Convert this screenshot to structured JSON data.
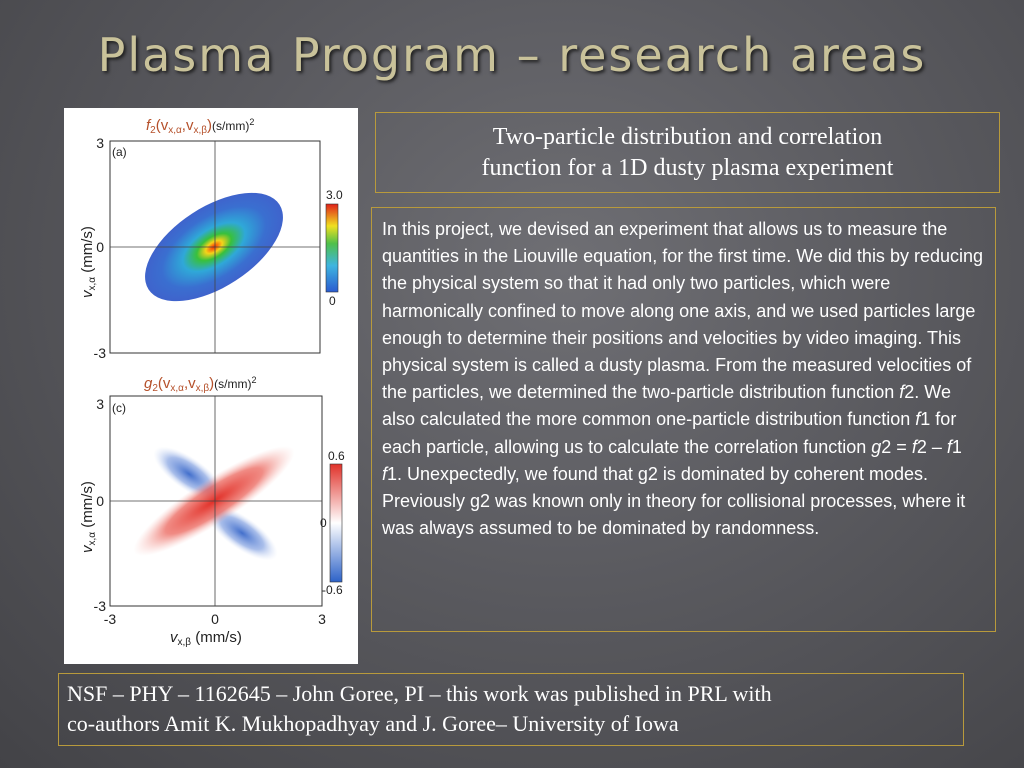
{
  "slide": {
    "title": "Plasma Program – research areas",
    "heading_line1": "Two-particle distribution and correlation",
    "heading_line2": "function for a 1D dusty plasma experiment",
    "body": {
      "t1": "In this project, we devised an experiment that allows us to measure the quantities in the Liouville equation, for the first time. We did this by reducing the physical system so that it had only two particles, which were harmonically confined to move along one axis, and we used particles large enough to determine their positions and velocities by video imaging. This physical system is called a dusty plasma. From the measured velocities of the particles, we determined the two-particle distribution function ",
      "f2a": "f",
      "t2": "2. We also calculated the more common one-particle distribution function ",
      "f1a": "f",
      "t3": "1 for each particle, allowing us to calculate the correlation function ",
      "g2": "g",
      "t4": "2 = ",
      "f2b": "f",
      "t5": "2 – ",
      "f1b": "f",
      "t6": "1 ",
      "f1c": "f",
      "t7": "1.   Unexpectedly, we found that g2 is dominated by coherent modes. Previously g2 was known only in theory for collisional processes, where it was always assumed to be dominated by randomness."
    },
    "footer_line1": "NSF – PHY – 1162645 – John Goree, PI – this work was published in PRL with",
    "footer_line2": "co-authors Amit K. Mukhopadhyay and J. Goree– University of Iowa"
  },
  "figure": {
    "panel_a": {
      "title_f": "f",
      "title_sub": "2",
      "title_args": "(v",
      "title_x1": "x,α",
      "title_comma": ",v",
      "title_x2": "x,β",
      "title_close": ")",
      "units": "(s/mm)",
      "units_exp": "2",
      "tag": "(a)",
      "ytick_top": "3",
      "ytick_mid": "0",
      "ytick_bottom": "-3",
      "ylabel_v": "v",
      "ylabel_sub": "x,α",
      "ylabel_unit": " (mm/s)",
      "cbar_max": "3.0",
      "cbar_min": "0"
    },
    "panel_c": {
      "title_g": "g",
      "title_sub": "2",
      "title_args": "(v",
      "title_x1": "x,α",
      "title_comma": ",v",
      "title_x2": "x,β",
      "title_close": ")",
      "units": "(s/mm)",
      "units_exp": "2",
      "tag": "(c)",
      "ytick_top": "3",
      "ytick_mid": "0",
      "ytick_bottom": "-3",
      "ylabel_v": "v",
      "ylabel_sub": "x,α",
      "ylabel_unit": " (mm/s)",
      "xtick_left": "-3",
      "xtick_mid": "0",
      "xtick_right": "3",
      "xlabel_v": "v",
      "xlabel_sub": "x,β",
      "xlabel_unit": " (mm/s)",
      "cbar_max": "0.6",
      "cbar_mid": "0",
      "cbar_min": "-0.6"
    }
  },
  "colors": {
    "title": "#c9c29a",
    "border": "#b89a3c",
    "figure_title": "#b5502a"
  }
}
